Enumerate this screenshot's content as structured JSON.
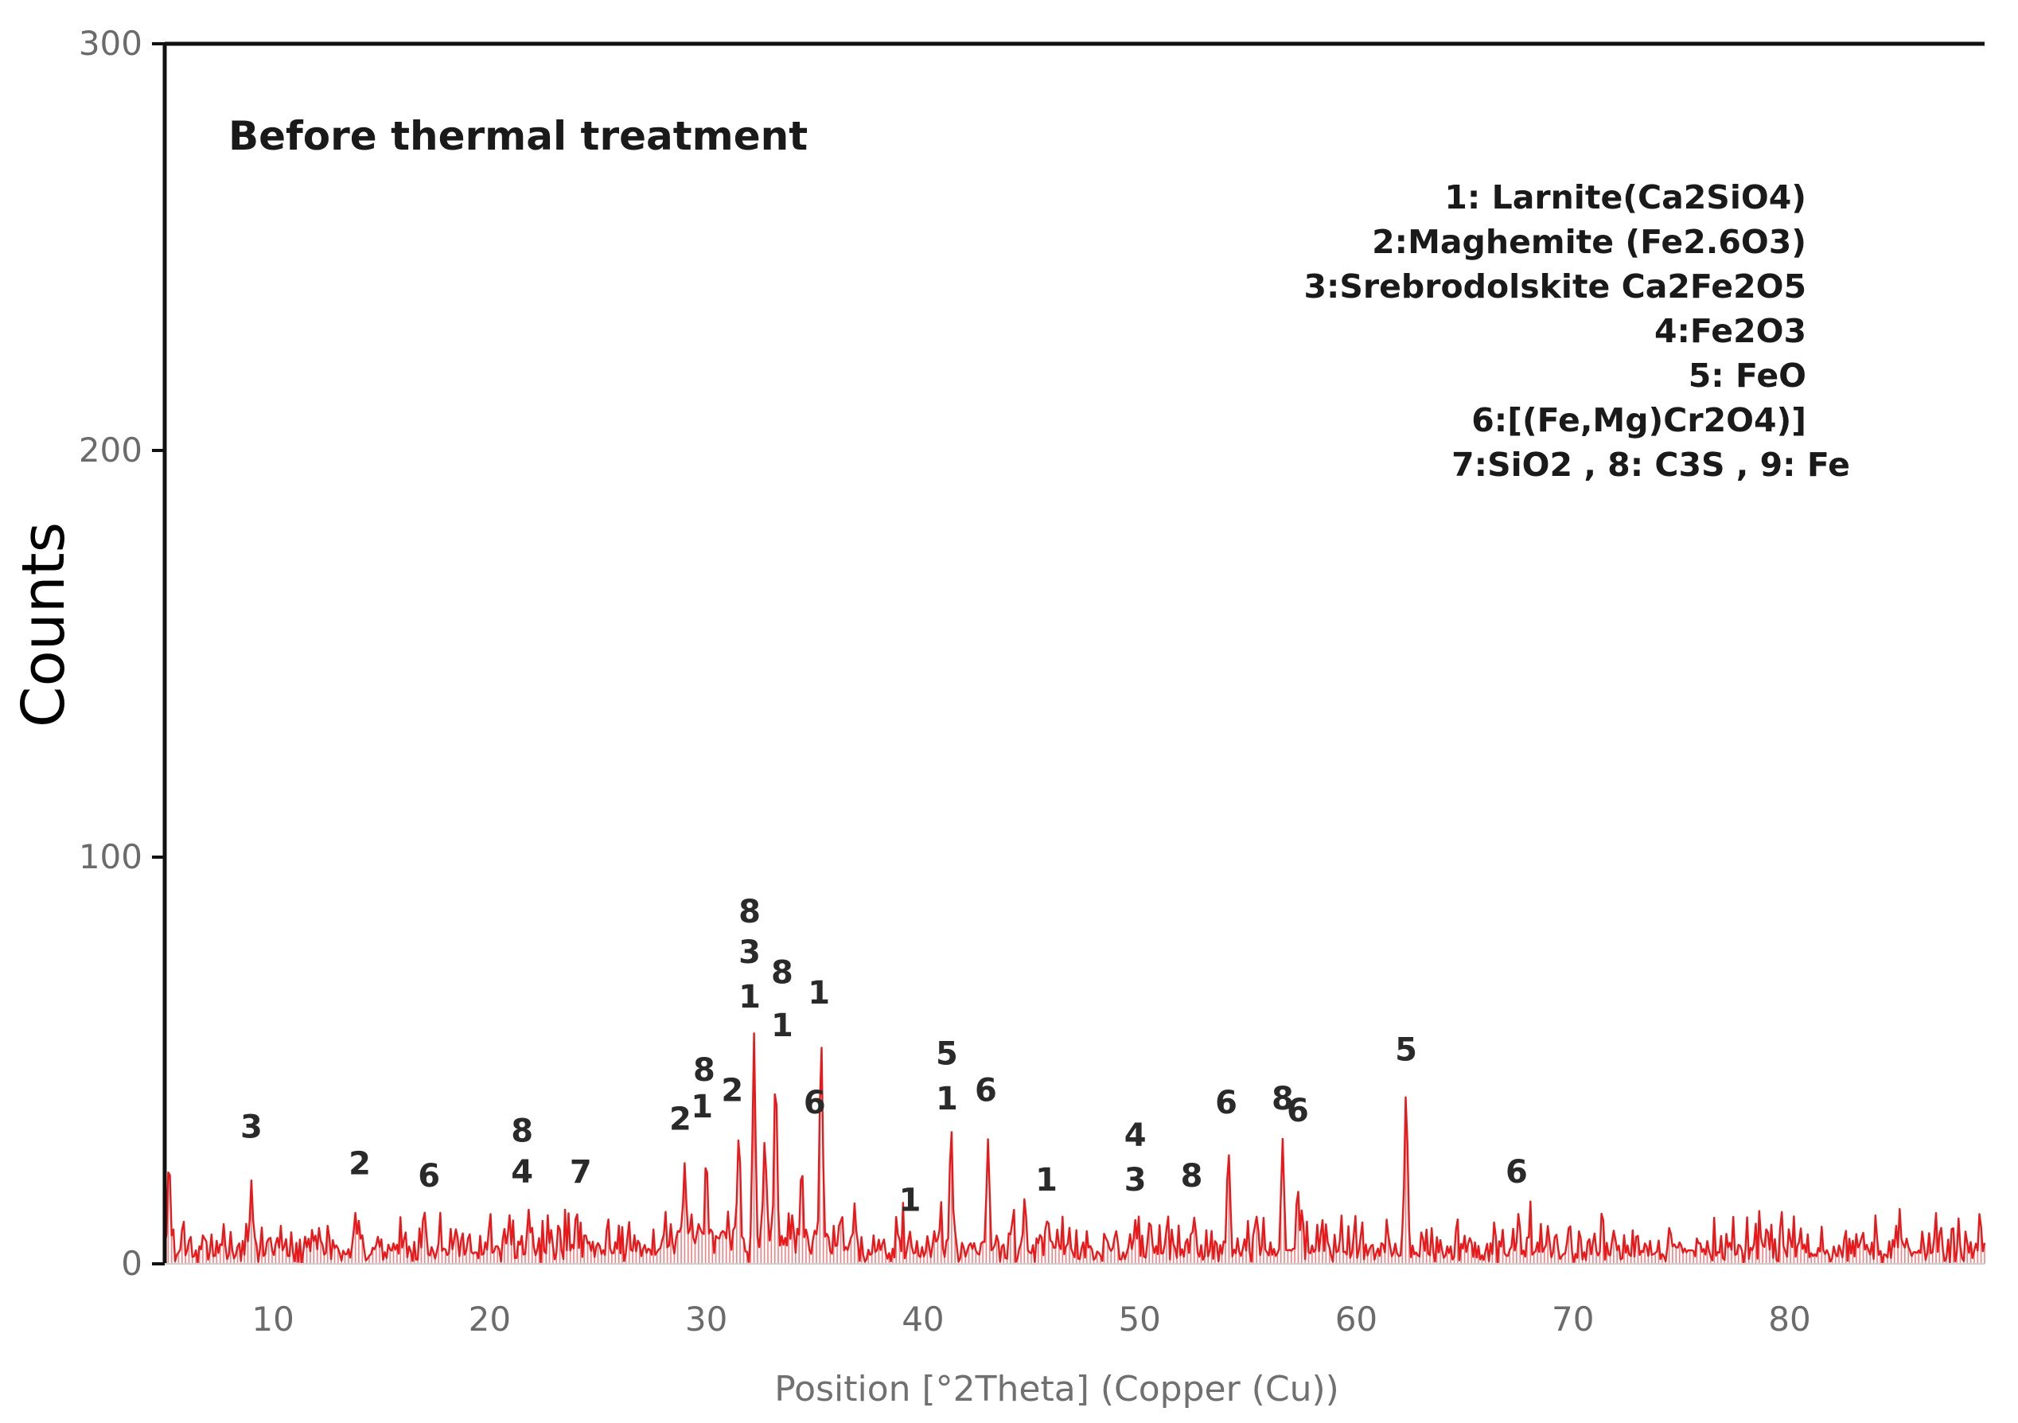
{
  "chart_data": {
    "type": "line",
    "title": "Before thermal treatment",
    "xlabel": "Position [°2Theta] (Copper (Cu))",
    "ylabel": "Counts",
    "xlim": [
      5,
      89
    ],
    "ylim": [
      0,
      300
    ],
    "x_ticks": [
      10,
      20,
      30,
      40,
      50,
      60,
      70,
      80
    ],
    "y_ticks": [
      0,
      100,
      200,
      300
    ],
    "grid": false,
    "series_color": "#e8191b",
    "legend": [
      "1: Larnite(Ca2SiO4)",
      "2:Maghemite (Fe2.6O3)",
      "3:Srebrodolskite Ca2Fe2O5",
      "4:Fe2O3",
      "5: FeO",
      "6:[(Fe,Mg)Cr2O4)]",
      "7:SiO2 , 8: C3S , 9: Fe"
    ],
    "major_peaks": [
      {
        "x": 5.2,
        "y": 27
      },
      {
        "x": 9.0,
        "y": 21
      },
      {
        "x": 13.8,
        "y": 14
      },
      {
        "x": 17.0,
        "y": 13
      },
      {
        "x": 21.8,
        "y": 14
      },
      {
        "x": 24.0,
        "y": 14
      },
      {
        "x": 29.0,
        "y": 26
      },
      {
        "x": 30.0,
        "y": 28
      },
      {
        "x": 31.5,
        "y": 35
      },
      {
        "x": 32.2,
        "y": 58
      },
      {
        "x": 32.7,
        "y": 32
      },
      {
        "x": 33.2,
        "y": 52
      },
      {
        "x": 34.4,
        "y": 25
      },
      {
        "x": 35.3,
        "y": 60
      },
      {
        "x": 39.4,
        "y": 8
      },
      {
        "x": 41.3,
        "y": 34
      },
      {
        "x": 43.0,
        "y": 32
      },
      {
        "x": 44.7,
        "y": 18
      },
      {
        "x": 45.7,
        "y": 12
      },
      {
        "x": 49.8,
        "y": 11
      },
      {
        "x": 52.4,
        "y": 9
      },
      {
        "x": 54.1,
        "y": 29
      },
      {
        "x": 56.6,
        "y": 32
      },
      {
        "x": 57.3,
        "y": 21
      },
      {
        "x": 62.3,
        "y": 46
      },
      {
        "x": 67.5,
        "y": 13
      },
      {
        "x": 88.8,
        "y": 11
      }
    ],
    "peak_labels": [
      {
        "x": 9.0,
        "y": 31,
        "text": "3"
      },
      {
        "x": 14.0,
        "y": 22,
        "text": "2"
      },
      {
        "x": 17.2,
        "y": 19,
        "text": "6"
      },
      {
        "x": 21.5,
        "y": 30,
        "text": "8"
      },
      {
        "x": 21.5,
        "y": 20,
        "text": "4"
      },
      {
        "x": 24.2,
        "y": 20,
        "text": "7"
      },
      {
        "x": 28.8,
        "y": 33,
        "text": "2"
      },
      {
        "x": 29.8,
        "y": 36,
        "text": "1"
      },
      {
        "x": 29.9,
        "y": 45,
        "text": "8"
      },
      {
        "x": 31.2,
        "y": 40,
        "text": "2"
      },
      {
        "x": 32.0,
        "y": 84,
        "text": "8"
      },
      {
        "x": 32.0,
        "y": 74,
        "text": "3"
      },
      {
        "x": 32.0,
        "y": 63,
        "text": "1"
      },
      {
        "x": 33.5,
        "y": 69,
        "text": "8"
      },
      {
        "x": 33.5,
        "y": 56,
        "text": "1"
      },
      {
        "x": 35.0,
        "y": 37,
        "text": "6"
      },
      {
        "x": 35.2,
        "y": 64,
        "text": "1"
      },
      {
        "x": 39.4,
        "y": 13,
        "text": "1"
      },
      {
        "x": 41.1,
        "y": 49,
        "text": "5"
      },
      {
        "x": 41.1,
        "y": 38,
        "text": "1"
      },
      {
        "x": 42.9,
        "y": 40,
        "text": "6"
      },
      {
        "x": 45.7,
        "y": 18,
        "text": "1"
      },
      {
        "x": 49.8,
        "y": 29,
        "text": "4"
      },
      {
        "x": 49.8,
        "y": 18,
        "text": "3"
      },
      {
        "x": 52.4,
        "y": 19,
        "text": "8"
      },
      {
        "x": 54.0,
        "y": 37,
        "text": "6"
      },
      {
        "x": 56.6,
        "y": 38,
        "text": "8"
      },
      {
        "x": 57.3,
        "y": 35,
        "text": "6"
      },
      {
        "x": 62.3,
        "y": 50,
        "text": "5"
      },
      {
        "x": 67.4,
        "y": 20,
        "text": "6"
      }
    ]
  }
}
